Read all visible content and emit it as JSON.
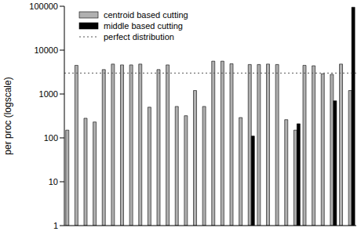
{
  "chart_data": {
    "type": "bar",
    "y_label": "per proc (logscale)",
    "categories": [
      null,
      null,
      null,
      null,
      null,
      null,
      null,
      null,
      null,
      null,
      null,
      null,
      null,
      null,
      null,
      null,
      null,
      null,
      null,
      null,
      null,
      null,
      null,
      null,
      null,
      null,
      null,
      null,
      null,
      null,
      null,
      null
    ],
    "series": [
      {
        "name": "centroid based cutting",
        "color": "#b0b0b0",
        "values": [
          150,
          4500,
          280,
          230,
          3600,
          4800,
          4600,
          4600,
          4800,
          500,
          3600,
          4600,
          520,
          320,
          1200,
          520,
          5600,
          5600,
          4900,
          290,
          4700,
          4700,
          4800,
          4700,
          260,
          150,
          4500,
          4400,
          2900,
          2800,
          4800,
          1200
        ]
      },
      {
        "name": "middle based cutting",
        "color": "#000000",
        "values": [
          null,
          null,
          null,
          null,
          null,
          null,
          null,
          null,
          null,
          null,
          null,
          null,
          null,
          null,
          null,
          null,
          null,
          null,
          null,
          null,
          110,
          null,
          null,
          null,
          null,
          210,
          null,
          null,
          null,
          700,
          null,
          95000
        ]
      }
    ],
    "reference_lines": [
      {
        "name": "perfect distribution",
        "value": 3000,
        "color": "#555555",
        "line_style": "dotted"
      }
    ],
    "log": "y",
    "ylim": [
      1,
      100000
    ],
    "yticks": [
      1,
      10,
      100,
      1000,
      10000,
      100000
    ],
    "tick_labels": "y",
    "legend": "upper left"
  }
}
